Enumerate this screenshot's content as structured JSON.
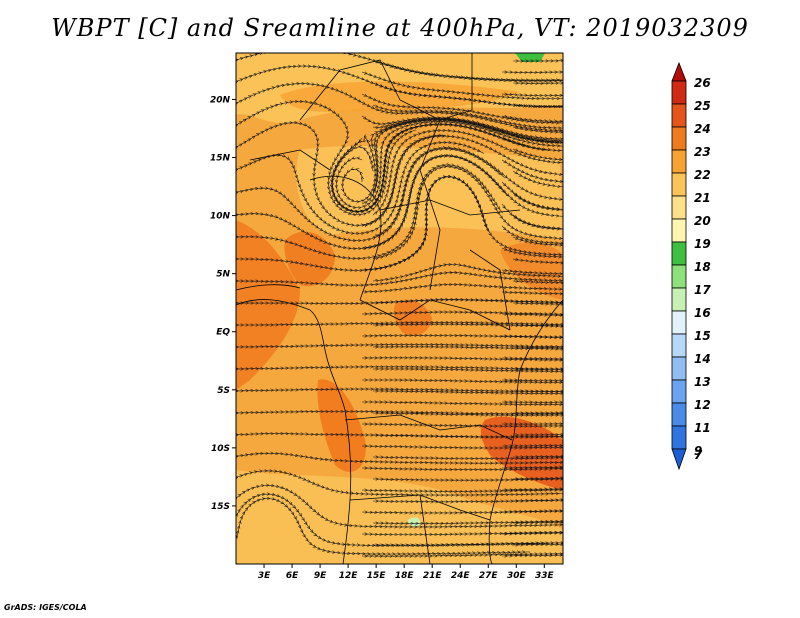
{
  "title": "WBPT [C] and Sreamline at 400hPa, VT: 2019032309",
  "footer": "GrADS: IGES/COLA",
  "chart_data": {
    "type": "heatmap",
    "variable": "WBPT [C]",
    "overlay": "Streamline",
    "level": "400hPa",
    "valid_time": "2019032309",
    "lon_range": [
      0,
      35
    ],
    "lat_range": [
      -20,
      24
    ],
    "x_ticks": [
      "3E",
      "6E",
      "9E",
      "12E",
      "15E",
      "18E",
      "21E",
      "24E",
      "27E",
      "30E",
      "33E"
    ],
    "x_tick_values": [
      3,
      6,
      9,
      12,
      15,
      18,
      21,
      24,
      27,
      30,
      33
    ],
    "y_ticks": [
      "20N",
      "15N",
      "10N",
      "5N",
      "EQ",
      "5S",
      "10S",
      "15S"
    ],
    "y_tick_values": [
      20,
      15,
      10,
      5,
      0,
      -5,
      -10,
      -15
    ],
    "colorbar": {
      "levels": [
        "7",
        "9",
        "11",
        "12",
        "13",
        "14",
        "15",
        "16",
        "17",
        "18",
        "19",
        "20",
        "21",
        "22",
        "23",
        "24",
        "25",
        "26"
      ],
      "colors": [
        "#1a5fd6",
        "#2f74e0",
        "#4a8be8",
        "#6aa3ef",
        "#8fbdf4",
        "#b8d8f8",
        "#e2f2fb",
        "#c6f0b4",
        "#8ee07a",
        "#3fbf3f",
        "#fdf6b0",
        "#fde089",
        "#fbc45a",
        "#f7a232",
        "#f07a1e",
        "#e5541a",
        "#d12a14",
        "#b30a0a"
      ],
      "extend": "both"
    },
    "dominant_range": [
      19,
      23
    ]
  }
}
